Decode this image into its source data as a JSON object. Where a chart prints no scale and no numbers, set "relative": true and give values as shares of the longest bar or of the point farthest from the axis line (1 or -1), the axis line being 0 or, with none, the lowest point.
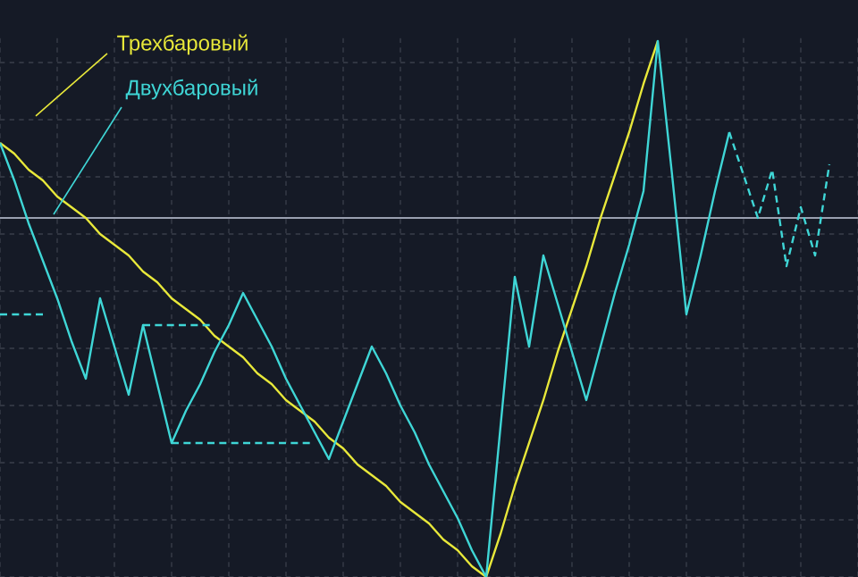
{
  "chart_data": {
    "type": "line",
    "relative": true,
    "grid": true,
    "tick_labels": false,
    "marker": "none",
    "categories": [
      null,
      null,
      null,
      null,
      null,
      null,
      null,
      null,
      null,
      null,
      null,
      null,
      null,
      null,
      null,
      null,
      null,
      null,
      null,
      null,
      null,
      null,
      null,
      null,
      null,
      null,
      null,
      null,
      null,
      null,
      null,
      null,
      null,
      null,
      null,
      null,
      null,
      null,
      null,
      null,
      null,
      null,
      null,
      null,
      null,
      null,
      null,
      null,
      null,
      null,
      null,
      null,
      null,
      null,
      null,
      null,
      null,
      null,
      null,
      null,
      null
    ],
    "ref_lines": [
      {
        "axis": "y",
        "value": 0.67,
        "color": "#9aa0b0"
      }
    ],
    "series": [
      {
        "name": "Трехбаровый",
        "color": "#e8e83a",
        "line_style": "solid",
        "values": [
          0.81,
          0.79,
          0.76,
          0.74,
          0.71,
          0.69,
          0.67,
          0.64,
          0.62,
          0.6,
          0.57,
          0.55,
          0.52,
          0.5,
          0.48,
          0.45,
          0.43,
          0.41,
          0.38,
          0.36,
          0.33,
          0.31,
          0.29,
          0.26,
          0.24,
          0.21,
          0.19,
          0.17,
          0.14,
          0.12,
          0.1,
          0.07,
          0.05,
          0.02,
          0.0,
          0.08,
          0.17,
          0.25,
          0.33,
          0.42,
          0.5,
          0.58,
          0.67,
          0.75,
          0.83,
          0.92,
          1.0,
          null,
          null,
          null,
          null,
          null,
          null,
          null,
          null,
          null,
          null,
          null,
          null,
          null,
          null
        ]
      },
      {
        "name": "Двухбаровый",
        "color": "#3fd6d6",
        "line_style": "solid",
        "values": [
          0.81,
          0.74,
          0.66,
          0.59,
          0.52,
          0.44,
          0.37,
          0.52,
          0.43,
          0.34,
          0.47,
          0.36,
          0.25,
          0.31,
          0.36,
          0.42,
          0.47,
          0.53,
          0.48,
          0.43,
          0.37,
          0.32,
          0.27,
          0.22,
          0.29,
          0.36,
          0.43,
          0.38,
          0.32,
          0.27,
          0.21,
          0.16,
          0.11,
          0.05,
          0.0,
          0.28,
          0.56,
          0.43,
          0.6,
          0.51,
          0.42,
          0.33,
          0.43,
          0.53,
          0.62,
          0.72,
          1.0,
          0.75,
          0.49,
          0.6,
          0.72,
          0.83,
          null,
          null,
          null,
          null,
          null,
          null,
          null,
          null,
          null
        ]
      },
      {
        "color": "#3fd6d6",
        "line_style": "dashed",
        "values": [
          0.49,
          0.49,
          0.49,
          0.49,
          null,
          null,
          null,
          null,
          null,
          null,
          0.47,
          0.47,
          0.47,
          0.47,
          0.47,
          0.47,
          null,
          null,
          null,
          null,
          null,
          null,
          null,
          null,
          null,
          null,
          null,
          null,
          null,
          null,
          null,
          null,
          null,
          null,
          null,
          null,
          null,
          null,
          null,
          null,
          null,
          null,
          null,
          null,
          null,
          null,
          null,
          null,
          null,
          null,
          null,
          0.83,
          0.75,
          0.67,
          0.76,
          0.58,
          0.69,
          0.6,
          0.77,
          null,
          null
        ]
      },
      {
        "color": "#3fd6d6",
        "line_style": "dashed",
        "values": [
          null,
          null,
          null,
          null,
          null,
          null,
          null,
          null,
          null,
          null,
          null,
          null,
          0.25,
          0.25,
          0.25,
          0.25,
          0.25,
          0.25,
          0.25,
          0.25,
          0.25,
          0.25,
          0.25,
          null,
          null,
          null,
          null,
          null,
          null,
          null,
          null,
          null,
          null,
          null,
          null,
          null,
          null,
          null,
          null,
          null,
          null,
          null,
          null,
          null,
          null,
          null,
          null,
          null,
          null,
          null,
          null,
          null,
          null,
          null,
          null,
          null,
          null,
          null,
          null,
          null,
          null
        ]
      }
    ]
  }
}
